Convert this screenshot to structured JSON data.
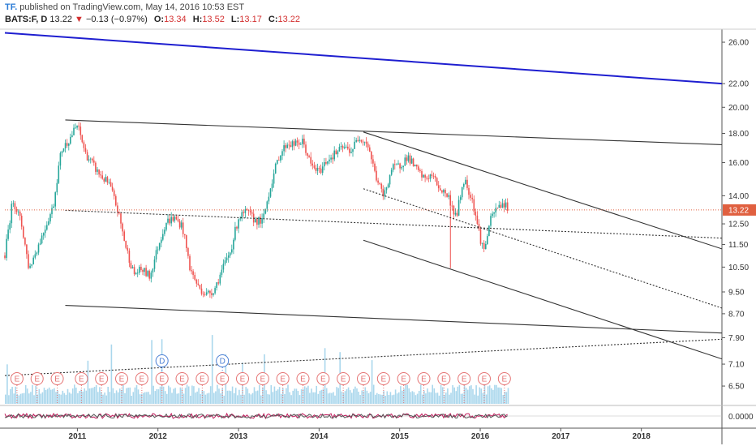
{
  "header": {
    "logo": "TF.",
    "published": "published on TradingView.com, May 14, 2016 10:53 EST",
    "symbol": "BATS:F, D",
    "last": "13.22",
    "change": "−0.13 (−0.97%)",
    "o_label": "O:",
    "o_value": "13.34",
    "h_label": "H:",
    "h_value": "13.52",
    "l_label": "L:",
    "l_value": "13.17",
    "c_label": "C:",
    "c_value": "13.22"
  },
  "colors": {
    "up": "#26a69a",
    "down": "#ef5350",
    "trend_blue": "#1e1ed0",
    "lines": "#333333",
    "price_line": "#e06040",
    "volume": "#8ecae6",
    "event": "#e57373",
    "dividend": "#4a7fd4"
  },
  "chart_data": {
    "type": "candlestick",
    "symbol": "BATS:F",
    "interval": "D",
    "x_ticks": [
      "2011",
      "2012",
      "2013",
      "2014",
      "2015",
      "2016",
      "2017",
      "2018"
    ],
    "x_tick_pos": [
      2011.0,
      2012.0,
      2013.0,
      2014.0,
      2015.0,
      2016.0,
      2017.0,
      2018.0
    ],
    "xlim": [
      2010.1,
      2019.0
    ],
    "y_scale": "log",
    "y_ticks": [
      "26.00",
      "22.00",
      "20.00",
      "18.00",
      "16.00",
      "14.00",
      "12.50",
      "11.50",
      "10.50",
      "9.50",
      "8.70",
      "7.90",
      "7.10",
      "6.50"
    ],
    "y_tick_values": [
      26.0,
      22.0,
      20.0,
      18.0,
      16.0,
      14.0,
      12.5,
      11.5,
      10.5,
      9.5,
      8.7,
      7.9,
      7.1,
      6.5
    ],
    "last_price_label": "13.22",
    "last_price": 13.22,
    "price_path": [
      [
        2010.1,
        11.0
      ],
      [
        2010.2,
        13.8
      ],
      [
        2010.3,
        12.6
      ],
      [
        2010.4,
        10.4
      ],
      [
        2010.55,
        11.8
      ],
      [
        2010.7,
        13.4
      ],
      [
        2010.8,
        16.8
      ],
      [
        2010.9,
        17.6
      ],
      [
        2011.0,
        18.6
      ],
      [
        2011.1,
        16.6
      ],
      [
        2011.25,
        15.4
      ],
      [
        2011.4,
        14.6
      ],
      [
        2011.5,
        13.2
      ],
      [
        2011.6,
        11.4
      ],
      [
        2011.7,
        10.2
      ],
      [
        2011.8,
        10.4
      ],
      [
        2011.9,
        10.1
      ],
      [
        2012.0,
        11.4
      ],
      [
        2012.1,
        12.6
      ],
      [
        2012.2,
        12.8
      ],
      [
        2012.3,
        12.4
      ],
      [
        2012.4,
        10.4
      ],
      [
        2012.5,
        9.7
      ],
      [
        2012.6,
        9.4
      ],
      [
        2012.7,
        9.6
      ],
      [
        2012.8,
        10.4
      ],
      [
        2012.9,
        11.2
      ],
      [
        2013.0,
        12.8
      ],
      [
        2013.1,
        13.1
      ],
      [
        2013.2,
        12.7
      ],
      [
        2013.3,
        12.6
      ],
      [
        2013.4,
        14.6
      ],
      [
        2013.5,
        16.4
      ],
      [
        2013.6,
        17.3
      ],
      [
        2013.7,
        17.2
      ],
      [
        2013.8,
        17.4
      ],
      [
        2013.9,
        15.8
      ],
      [
        2014.0,
        15.4
      ],
      [
        2014.1,
        16.2
      ],
      [
        2014.2,
        16.6
      ],
      [
        2014.3,
        17.0
      ],
      [
        2014.4,
        16.8
      ],
      [
        2014.5,
        17.8
      ],
      [
        2014.6,
        17.3
      ],
      [
        2014.7,
        15.2
      ],
      [
        2014.8,
        13.9
      ],
      [
        2014.9,
        15.6
      ],
      [
        2015.0,
        15.8
      ],
      [
        2015.1,
        16.4
      ],
      [
        2015.2,
        15.6
      ],
      [
        2015.3,
        15.0
      ],
      [
        2015.4,
        15.2
      ],
      [
        2015.5,
        14.4
      ],
      [
        2015.6,
        14.0
      ],
      [
        2015.7,
        12.8
      ],
      [
        2015.8,
        15.0
      ],
      [
        2015.9,
        13.8
      ],
      [
        2016.0,
        11.8
      ],
      [
        2016.05,
        11.2
      ],
      [
        2016.12,
        12.6
      ],
      [
        2016.2,
        13.3
      ],
      [
        2016.28,
        13.6
      ],
      [
        2016.36,
        13.22
      ]
    ],
    "drawings": [
      {
        "name": "blue-long-trendline",
        "color": "#1e1ed0",
        "style": "solid",
        "from": [
          2010.1,
          27.0
        ],
        "to": [
          2019.0,
          22.0
        ]
      },
      {
        "name": "upper-channel-line",
        "color": "#333333",
        "style": "solid",
        "from": [
          2010.85,
          19.0
        ],
        "to": [
          2019.0,
          17.2
        ]
      },
      {
        "name": "lower-channel-line",
        "color": "#333333",
        "style": "solid",
        "from": [
          2010.85,
          9.0
        ],
        "to": [
          2019.0,
          8.05
        ]
      },
      {
        "name": "descending-trend-upper",
        "color": "#333333",
        "style": "solid",
        "from": [
          2014.55,
          18.1
        ],
        "to": [
          2019.0,
          11.3
        ]
      },
      {
        "name": "descending-trend-lower",
        "color": "#333333",
        "style": "solid",
        "from": [
          2014.55,
          11.7
        ],
        "to": [
          2019.0,
          7.25
        ]
      },
      {
        "name": "dotted-horizontal-trend",
        "color": "#333333",
        "style": "dotted",
        "from": [
          2010.85,
          13.2
        ],
        "to": [
          2019.0,
          11.8
        ]
      },
      {
        "name": "dotted-descending-trend",
        "color": "#333333",
        "style": "dotted",
        "from": [
          2014.55,
          14.4
        ],
        "to": [
          2019.0,
          8.9
        ]
      },
      {
        "name": "dotted-rising-trend",
        "color": "#333333",
        "style": "dotted",
        "from": [
          2010.1,
          6.78
        ],
        "to": [
          2019.0,
          7.85
        ]
      }
    ],
    "earnings_markers": {
      "label": "E",
      "x": [
        2010.25,
        2010.5,
        2010.75,
        2011.05,
        2011.3,
        2011.55,
        2011.8,
        2012.05,
        2012.3,
        2012.55,
        2012.8,
        2013.05,
        2013.3,
        2013.55,
        2013.8,
        2014.05,
        2014.3,
        2014.55,
        2014.8,
        2015.05,
        2015.3,
        2015.55,
        2015.8,
        2016.05,
        2016.3
      ]
    },
    "dividend_markers": {
      "label": "D",
      "x": [
        2012.05,
        2012.8
      ]
    },
    "oscillator_ticks": [
      "0.0000"
    ],
    "oscillator_value": 0.0
  }
}
